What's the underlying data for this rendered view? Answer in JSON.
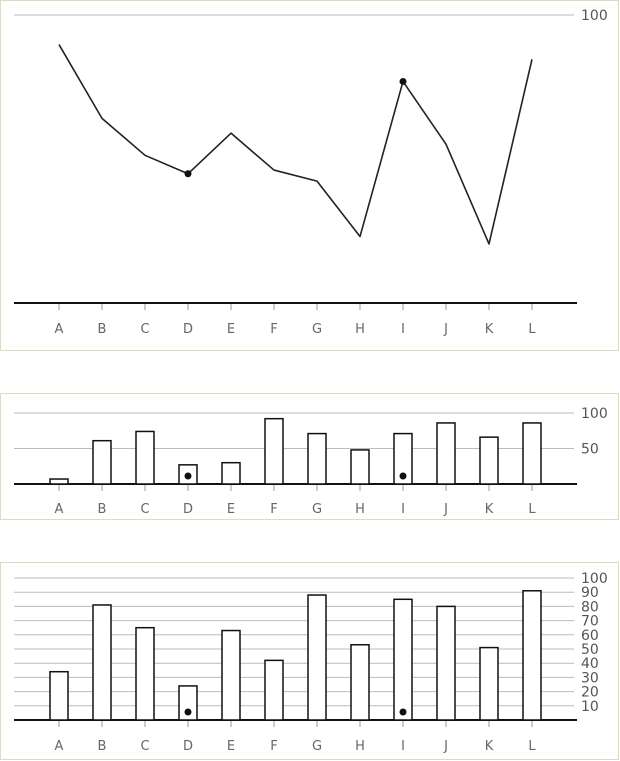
{
  "chart_data": [
    {
      "type": "line",
      "categories": [
        "A",
        "B",
        "C",
        "D",
        "E",
        "F",
        "G",
        "H",
        "I",
        "J",
        "K",
        "L"
      ],
      "values": [
        92,
        72,
        62,
        57,
        68,
        58,
        55,
        40,
        82,
        65,
        38,
        88
      ],
      "marked_categories": [
        "D",
        "I"
      ],
      "ylim": [
        22,
        100
      ],
      "y_ticks": [
        100
      ],
      "grid": true,
      "colors": {
        "line": "#222222",
        "axis": "#111111",
        "grid": "#bbbbbb",
        "tick_mark": "#999999"
      }
    },
    {
      "type": "bar",
      "categories": [
        "A",
        "B",
        "C",
        "D",
        "E",
        "F",
        "G",
        "H",
        "I",
        "J",
        "K",
        "L"
      ],
      "values": [
        7,
        61,
        74,
        27,
        30,
        92,
        71,
        48,
        71,
        86,
        66,
        86
      ],
      "marked_categories": [
        "D",
        "I"
      ],
      "ylim": [
        0,
        100
      ],
      "y_ticks": [
        100,
        50
      ],
      "grid": true,
      "colors": {
        "bar_fill": "#ffffff",
        "bar_stroke": "#111111",
        "axis": "#111111",
        "grid": "#bbbbbb",
        "tick_mark": "#999999"
      }
    },
    {
      "type": "bar",
      "categories": [
        "A",
        "B",
        "C",
        "D",
        "E",
        "F",
        "G",
        "H",
        "I",
        "J",
        "K",
        "L"
      ],
      "values": [
        34,
        81,
        65,
        24,
        63,
        42,
        88,
        53,
        85,
        80,
        51,
        91
      ],
      "marked_categories": [
        "D",
        "I"
      ],
      "ylim": [
        0,
        100
      ],
      "y_ticks": [
        100,
        90,
        80,
        70,
        60,
        50,
        40,
        30,
        20,
        10
      ],
      "grid": true,
      "colors": {
        "bar_fill": "#ffffff",
        "bar_stroke": "#111111",
        "axis": "#111111",
        "grid": "#bbbbbb",
        "tick_mark": "#999999"
      }
    }
  ]
}
